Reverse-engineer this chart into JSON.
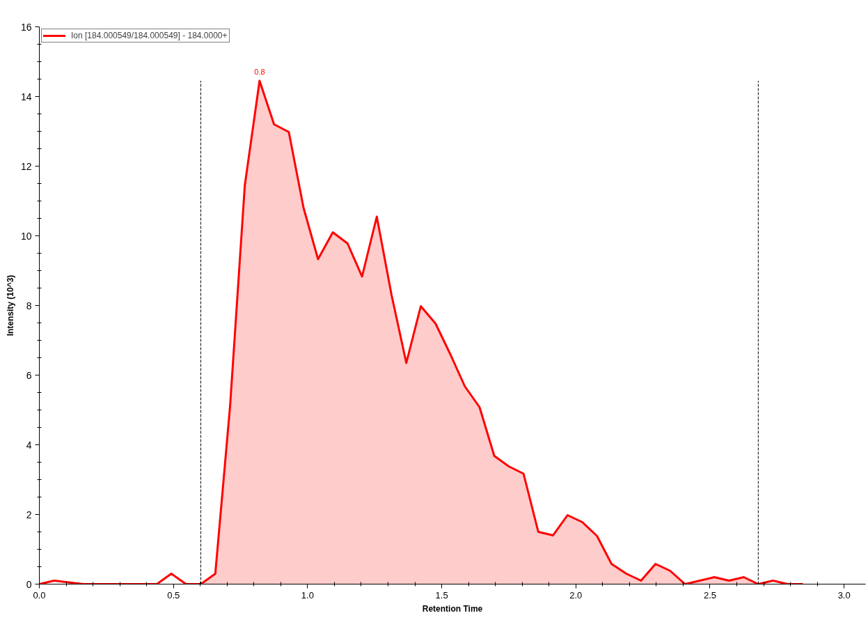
{
  "chart_data": {
    "type": "line",
    "xlabel": "Retention Time",
    "ylabel": "Intensity (10^3)",
    "x": [
      0,
      0.055,
      0.109,
      0.164,
      0.219,
      0.274,
      0.328,
      0.383,
      0.438,
      0.492,
      0.547,
      0.602,
      0.656,
      0.711,
      0.766,
      0.821,
      0.875,
      0.93,
      0.985,
      1.039,
      1.094,
      1.149,
      1.203,
      1.258,
      1.313,
      1.368,
      1.422,
      1.477,
      1.532,
      1.586,
      1.641,
      1.696,
      1.75,
      1.805,
      1.86,
      1.915,
      1.969,
      2.024,
      2.079,
      2.133,
      2.188,
      2.243,
      2.297,
      2.352,
      2.407,
      2.462,
      2.516,
      2.571,
      2.626,
      2.68,
      2.735,
      2.79,
      2.844
    ],
    "series": [
      {
        "type": "area",
        "color": "#ffcccc",
        "x": [
          0.602,
          0.656,
          0.711,
          0.766,
          0.821,
          0.875,
          0.93,
          0.985,
          1.039,
          1.094,
          1.149,
          1.203,
          1.258,
          1.313,
          1.368,
          1.422,
          1.477,
          1.532,
          1.586,
          1.641,
          1.696,
          1.75,
          1.805,
          1.86,
          1.915,
          1.969,
          2.024,
          2.079,
          2.133,
          2.188,
          2.243,
          2.297,
          2.352,
          2.407,
          2.462,
          2.516,
          2.571,
          2.626,
          2.68
        ],
        "values": [
          0,
          0.3,
          5.1,
          11.45,
          14.45,
          13.2,
          12.98,
          10.8,
          9.33,
          10.1,
          9.78,
          8.83,
          10.55,
          8.3,
          6.35,
          7.98,
          7.48,
          6.6,
          5.68,
          5.08,
          3.68,
          3.38,
          3.17,
          1.5,
          1.4,
          1.98,
          1.78,
          1.38,
          0.58,
          0.3,
          0.1,
          0.58,
          0.38,
          0,
          0.1,
          0.2,
          0.1,
          0.2,
          0
        ]
      },
      {
        "name": "Ion [184.000549/184.000549] - 184.0000+",
        "color": "#ff0000",
        "values": [
          0,
          0.1,
          0.05,
          0,
          0,
          0,
          0,
          0,
          0,
          0.3,
          0,
          0,
          0.3,
          5.1,
          11.45,
          14.45,
          13.2,
          12.98,
          10.8,
          9.33,
          10.1,
          9.78,
          8.83,
          10.55,
          8.3,
          6.35,
          7.98,
          7.48,
          6.6,
          5.68,
          5.08,
          3.68,
          3.38,
          3.17,
          1.5,
          1.4,
          1.98,
          1.78,
          1.38,
          0.58,
          0.3,
          0.1,
          0.58,
          0.38,
          0,
          0.1,
          0.2,
          0.1,
          0.2,
          0,
          0.1,
          0,
          0
        ]
      }
    ],
    "xlim": [
      0,
      3.08
    ],
    "ylim": [
      0,
      16
    ],
    "xticks": [
      {
        "value": 0,
        "label": "0.0"
      },
      0.5,
      {
        "value": 1,
        "label": "1.0"
      },
      1.5,
      {
        "value": 2,
        "label": "2.0"
      },
      2.5,
      {
        "value": 3,
        "label": "3.0"
      }
    ],
    "yticks": [
      0,
      2,
      4,
      6,
      8,
      10,
      12,
      14,
      16
    ],
    "ref_lines": [
      {
        "axis": "x",
        "value": 0.602,
        "color": "#000000",
        "line_style": "dashed"
      },
      {
        "axis": "x",
        "value": 2.68,
        "color": "#000000",
        "line_style": "dashed"
      }
    ],
    "annotations": [
      {
        "text": "0.8",
        "x": 0.821,
        "y": 14.45
      }
    ],
    "grid": false,
    "legend": "top left"
  }
}
